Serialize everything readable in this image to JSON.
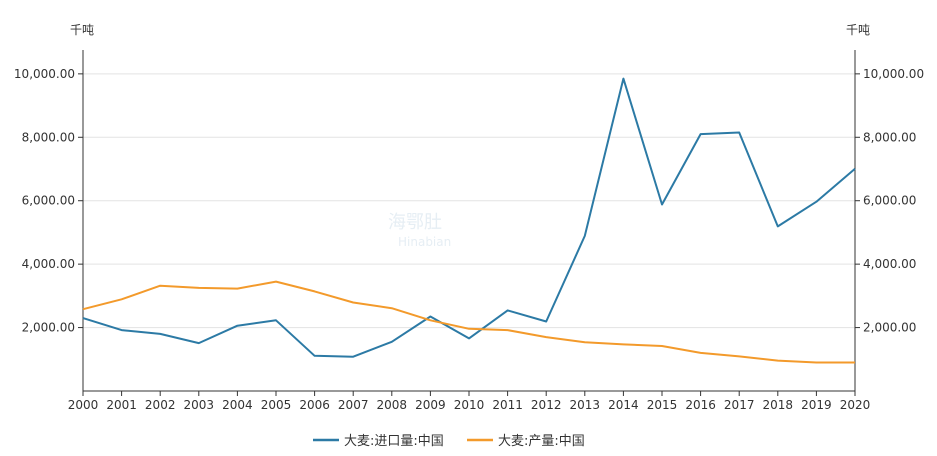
{
  "watermark": {
    "cn": "海鄂肚",
    "en": "Hinabian"
  },
  "chart_data": {
    "type": "line",
    "x": [
      2000,
      2001,
      2002,
      2003,
      2004,
      2005,
      2006,
      2007,
      2008,
      2009,
      2010,
      2011,
      2012,
      2013,
      2014,
      2015,
      2016,
      2017,
      2018,
      2019,
      2020
    ],
    "series": [
      {
        "name": "大麦:进口量:中国",
        "color": "#2c7aa5",
        "values": [
          2300,
          1920,
          1800,
          1510,
          2060,
          2230,
          1110,
          1080,
          1550,
          2350,
          1660,
          2540,
          2190,
          4890,
          9850,
          5880,
          8100,
          8150,
          5190,
          5970,
          7010
        ]
      },
      {
        "name": "大麦:产量:中国",
        "color": "#f39a2b",
        "values": [
          2580,
          2890,
          3320,
          3250,
          3230,
          3450,
          3140,
          2790,
          2610,
          2230,
          1960,
          1920,
          1700,
          1540,
          1470,
          1420,
          1200,
          1090,
          960,
          900,
          900
        ]
      }
    ],
    "y_left": {
      "unit": "千吨",
      "ticks": [
        2000,
        4000,
        6000,
        8000,
        10000
      ],
      "tick_labels": [
        "2,000.00",
        "4,000.00",
        "6,000.00",
        "8,000.00",
        "10,000.00"
      ],
      "ylim": [
        0,
        10500
      ]
    },
    "y_right": {
      "unit": "千吨",
      "ticks": [
        2000,
        4000,
        6000,
        8000,
        10000
      ],
      "tick_labels": [
        "2,000.00",
        "4,000.00",
        "6,000.00",
        "8,000.00",
        "10,000.00"
      ],
      "ylim": [
        0,
        10500
      ]
    },
    "grid": true,
    "legend_position": "bottom-center"
  }
}
